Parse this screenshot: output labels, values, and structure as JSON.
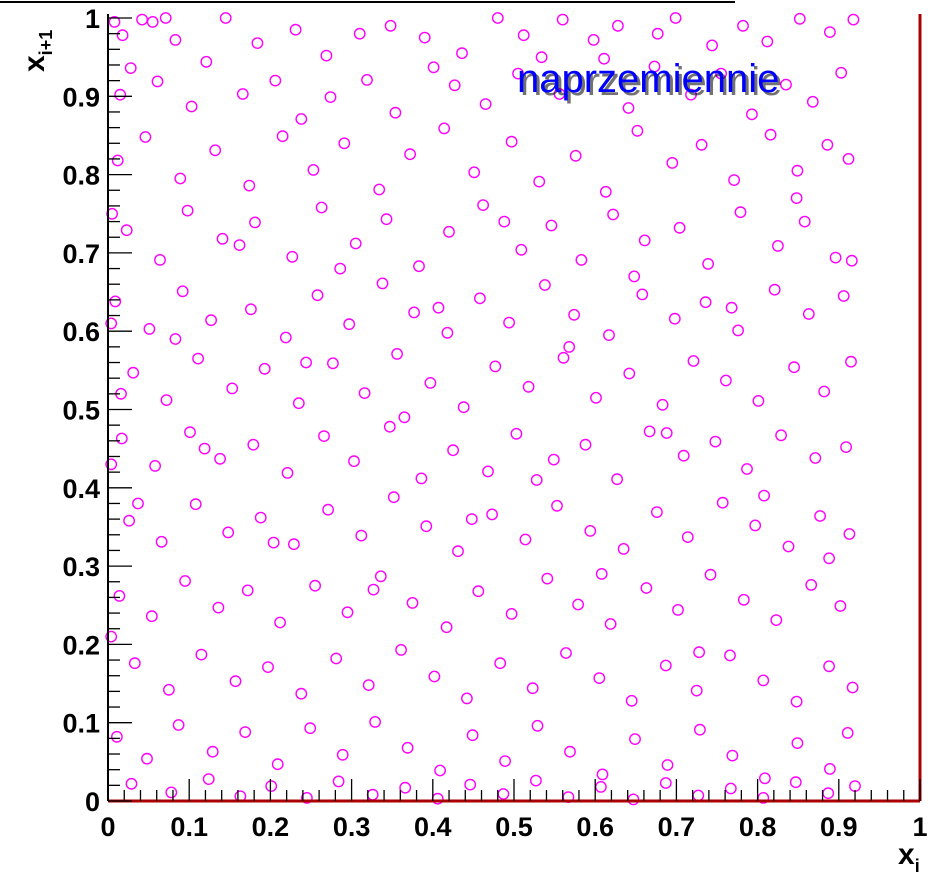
{
  "chart_data": {
    "type": "scatter",
    "title": "",
    "annotation": "naprzemiennie",
    "xlabel": {
      "base": "x",
      "sub": "i"
    },
    "ylabel": {
      "base": "x",
      "sub": "i+1"
    },
    "xlim": [
      0,
      1
    ],
    "ylim": [
      0,
      1
    ],
    "x_ticks": [
      "0",
      "0.1",
      "0.2",
      "0.3",
      "0.4",
      "0.5",
      "0.6",
      "0.7",
      "0.8",
      "0.9",
      "1"
    ],
    "y_ticks": [
      "0",
      "0.1",
      "0.2",
      "0.3",
      "0.4",
      "0.5",
      "0.6",
      "0.7",
      "0.8",
      "0.9",
      "1"
    ],
    "grid": false,
    "legend": "none",
    "marker": "open-circle",
    "marker_color": "#ff00ff",
    "axis_color": "#000000",
    "frame_color": "#aa0000",
    "annotation_color": "#0000ff",
    "points": [
      [
        0.008,
        0.995
      ],
      [
        0.018,
        0.978
      ],
      [
        0.042,
        0.998
      ],
      [
        0.055,
        0.995
      ],
      [
        0.071,
        1.0
      ],
      [
        0.083,
        0.972
      ],
      [
        0.145,
        1.0
      ],
      [
        0.184,
        0.968
      ],
      [
        0.231,
        0.985
      ],
      [
        0.269,
        0.952
      ],
      [
        0.31,
        0.98
      ],
      [
        0.348,
        0.99
      ],
      [
        0.39,
        0.975
      ],
      [
        0.436,
        0.955
      ],
      [
        0.48,
        1.0
      ],
      [
        0.512,
        0.978
      ],
      [
        0.534,
        0.95
      ],
      [
        0.56,
        0.998
      ],
      [
        0.598,
        0.972
      ],
      [
        0.628,
        0.99
      ],
      [
        0.677,
        0.98
      ],
      [
        0.699,
        1.0
      ],
      [
        0.744,
        0.965
      ],
      [
        0.782,
        0.99
      ],
      [
        0.812,
        0.97
      ],
      [
        0.852,
        0.999
      ],
      [
        0.889,
        0.982
      ],
      [
        0.918,
        0.998
      ],
      [
        0.015,
        0.902
      ],
      [
        0.028,
        0.936
      ],
      [
        0.061,
        0.919
      ],
      [
        0.103,
        0.887
      ],
      [
        0.121,
        0.944
      ],
      [
        0.166,
        0.903
      ],
      [
        0.206,
        0.92
      ],
      [
        0.238,
        0.871
      ],
      [
        0.274,
        0.899
      ],
      [
        0.319,
        0.921
      ],
      [
        0.354,
        0.879
      ],
      [
        0.401,
        0.937
      ],
      [
        0.427,
        0.914
      ],
      [
        0.465,
        0.89
      ],
      [
        0.505,
        0.929
      ],
      [
        0.556,
        0.903
      ],
      [
        0.611,
        0.948
      ],
      [
        0.641,
        0.885
      ],
      [
        0.673,
        0.938
      ],
      [
        0.718,
        0.902
      ],
      [
        0.755,
        0.929
      ],
      [
        0.793,
        0.877
      ],
      [
        0.835,
        0.915
      ],
      [
        0.868,
        0.893
      ],
      [
        0.903,
        0.93
      ],
      [
        0.012,
        0.818
      ],
      [
        0.046,
        0.848
      ],
      [
        0.089,
        0.795
      ],
      [
        0.132,
        0.831
      ],
      [
        0.174,
        0.786
      ],
      [
        0.215,
        0.849
      ],
      [
        0.253,
        0.806
      ],
      [
        0.291,
        0.84
      ],
      [
        0.334,
        0.781
      ],
      [
        0.372,
        0.826
      ],
      [
        0.414,
        0.859
      ],
      [
        0.451,
        0.803
      ],
      [
        0.497,
        0.842
      ],
      [
        0.531,
        0.791
      ],
      [
        0.576,
        0.824
      ],
      [
        0.613,
        0.778
      ],
      [
        0.652,
        0.856
      ],
      [
        0.695,
        0.815
      ],
      [
        0.731,
        0.838
      ],
      [
        0.771,
        0.793
      ],
      [
        0.816,
        0.851
      ],
      [
        0.849,
        0.805
      ],
      [
        0.886,
        0.838
      ],
      [
        0.912,
        0.82
      ],
      [
        0.023,
        0.729
      ],
      [
        0.064,
        0.691
      ],
      [
        0.098,
        0.754
      ],
      [
        0.141,
        0.718
      ],
      [
        0.181,
        0.739
      ],
      [
        0.227,
        0.695
      ],
      [
        0.263,
        0.758
      ],
      [
        0.305,
        0.712
      ],
      [
        0.343,
        0.743
      ],
      [
        0.383,
        0.683
      ],
      [
        0.42,
        0.727
      ],
      [
        0.462,
        0.761
      ],
      [
        0.509,
        0.704
      ],
      [
        0.546,
        0.735
      ],
      [
        0.583,
        0.691
      ],
      [
        0.622,
        0.749
      ],
      [
        0.661,
        0.716
      ],
      [
        0.704,
        0.732
      ],
      [
        0.739,
        0.686
      ],
      [
        0.779,
        0.752
      ],
      [
        0.825,
        0.709
      ],
      [
        0.858,
        0.74
      ],
      [
        0.896,
        0.694
      ],
      [
        0.009,
        0.638
      ],
      [
        0.051,
        0.603
      ],
      [
        0.092,
        0.651
      ],
      [
        0.127,
        0.614
      ],
      [
        0.176,
        0.628
      ],
      [
        0.219,
        0.592
      ],
      [
        0.258,
        0.646
      ],
      [
        0.297,
        0.609
      ],
      [
        0.338,
        0.661
      ],
      [
        0.377,
        0.624
      ],
      [
        0.418,
        0.598
      ],
      [
        0.458,
        0.642
      ],
      [
        0.494,
        0.611
      ],
      [
        0.538,
        0.659
      ],
      [
        0.574,
        0.621
      ],
      [
        0.617,
        0.595
      ],
      [
        0.658,
        0.647
      ],
      [
        0.698,
        0.616
      ],
      [
        0.736,
        0.637
      ],
      [
        0.776,
        0.601
      ],
      [
        0.821,
        0.653
      ],
      [
        0.863,
        0.622
      ],
      [
        0.906,
        0.645
      ],
      [
        0.031,
        0.547
      ],
      [
        0.072,
        0.512
      ],
      [
        0.111,
        0.565
      ],
      [
        0.153,
        0.527
      ],
      [
        0.193,
        0.552
      ],
      [
        0.235,
        0.508
      ],
      [
        0.277,
        0.559
      ],
      [
        0.316,
        0.521
      ],
      [
        0.356,
        0.571
      ],
      [
        0.397,
        0.534
      ],
      [
        0.438,
        0.503
      ],
      [
        0.477,
        0.555
      ],
      [
        0.518,
        0.529
      ],
      [
        0.561,
        0.566
      ],
      [
        0.601,
        0.515
      ],
      [
        0.642,
        0.546
      ],
      [
        0.683,
        0.506
      ],
      [
        0.721,
        0.562
      ],
      [
        0.761,
        0.537
      ],
      [
        0.801,
        0.511
      ],
      [
        0.845,
        0.554
      ],
      [
        0.882,
        0.523
      ],
      [
        0.915,
        0.561
      ],
      [
        0.017,
        0.463
      ],
      [
        0.058,
        0.428
      ],
      [
        0.101,
        0.471
      ],
      [
        0.138,
        0.437
      ],
      [
        0.179,
        0.455
      ],
      [
        0.221,
        0.419
      ],
      [
        0.266,
        0.466
      ],
      [
        0.303,
        0.434
      ],
      [
        0.347,
        0.478
      ],
      [
        0.386,
        0.412
      ],
      [
        0.425,
        0.448
      ],
      [
        0.468,
        0.421
      ],
      [
        0.503,
        0.469
      ],
      [
        0.549,
        0.436
      ],
      [
        0.588,
        0.455
      ],
      [
        0.627,
        0.411
      ],
      [
        0.667,
        0.472
      ],
      [
        0.709,
        0.441
      ],
      [
        0.748,
        0.459
      ],
      [
        0.787,
        0.424
      ],
      [
        0.829,
        0.467
      ],
      [
        0.871,
        0.438
      ],
      [
        0.909,
        0.452
      ],
      [
        0.026,
        0.358
      ],
      [
        0.066,
        0.331
      ],
      [
        0.108,
        0.379
      ],
      [
        0.148,
        0.343
      ],
      [
        0.188,
        0.362
      ],
      [
        0.229,
        0.328
      ],
      [
        0.271,
        0.372
      ],
      [
        0.312,
        0.339
      ],
      [
        0.352,
        0.388
      ],
      [
        0.392,
        0.351
      ],
      [
        0.431,
        0.319
      ],
      [
        0.473,
        0.366
      ],
      [
        0.514,
        0.334
      ],
      [
        0.553,
        0.377
      ],
      [
        0.594,
        0.345
      ],
      [
        0.635,
        0.322
      ],
      [
        0.676,
        0.369
      ],
      [
        0.714,
        0.337
      ],
      [
        0.757,
        0.381
      ],
      [
        0.797,
        0.352
      ],
      [
        0.838,
        0.325
      ],
      [
        0.877,
        0.364
      ],
      [
        0.913,
        0.341
      ],
      [
        0.014,
        0.262
      ],
      [
        0.054,
        0.236
      ],
      [
        0.095,
        0.281
      ],
      [
        0.136,
        0.247
      ],
      [
        0.172,
        0.269
      ],
      [
        0.212,
        0.228
      ],
      [
        0.255,
        0.275
      ],
      [
        0.295,
        0.241
      ],
      [
        0.336,
        0.287
      ],
      [
        0.375,
        0.253
      ],
      [
        0.417,
        0.222
      ],
      [
        0.456,
        0.268
      ],
      [
        0.497,
        0.239
      ],
      [
        0.541,
        0.284
      ],
      [
        0.579,
        0.251
      ],
      [
        0.619,
        0.226
      ],
      [
        0.663,
        0.272
      ],
      [
        0.702,
        0.244
      ],
      [
        0.742,
        0.289
      ],
      [
        0.783,
        0.257
      ],
      [
        0.823,
        0.231
      ],
      [
        0.866,
        0.276
      ],
      [
        0.902,
        0.249
      ],
      [
        0.033,
        0.176
      ],
      [
        0.075,
        0.142
      ],
      [
        0.115,
        0.187
      ],
      [
        0.157,
        0.153
      ],
      [
        0.197,
        0.171
      ],
      [
        0.238,
        0.137
      ],
      [
        0.281,
        0.182
      ],
      [
        0.321,
        0.148
      ],
      [
        0.361,
        0.193
      ],
      [
        0.402,
        0.159
      ],
      [
        0.442,
        0.131
      ],
      [
        0.483,
        0.176
      ],
      [
        0.523,
        0.144
      ],
      [
        0.564,
        0.189
      ],
      [
        0.605,
        0.157
      ],
      [
        0.645,
        0.128
      ],
      [
        0.687,
        0.173
      ],
      [
        0.725,
        0.141
      ],
      [
        0.766,
        0.186
      ],
      [
        0.807,
        0.154
      ],
      [
        0.848,
        0.127
      ],
      [
        0.888,
        0.172
      ],
      [
        0.917,
        0.145
      ],
      [
        0.011,
        0.082
      ],
      [
        0.048,
        0.054
      ],
      [
        0.087,
        0.097
      ],
      [
        0.129,
        0.063
      ],
      [
        0.169,
        0.088
      ],
      [
        0.209,
        0.047
      ],
      [
        0.249,
        0.093
      ],
      [
        0.289,
        0.059
      ],
      [
        0.329,
        0.101
      ],
      [
        0.369,
        0.068
      ],
      [
        0.409,
        0.039
      ],
      [
        0.449,
        0.084
      ],
      [
        0.489,
        0.051
      ],
      [
        0.529,
        0.096
      ],
      [
        0.569,
        0.063
      ],
      [
        0.609,
        0.034
      ],
      [
        0.649,
        0.079
      ],
      [
        0.689,
        0.046
      ],
      [
        0.729,
        0.091
      ],
      [
        0.769,
        0.058
      ],
      [
        0.809,
        0.029
      ],
      [
        0.849,
        0.074
      ],
      [
        0.889,
        0.041
      ],
      [
        0.911,
        0.087
      ],
      [
        0.029,
        0.022
      ],
      [
        0.078,
        0.011
      ],
      [
        0.124,
        0.028
      ],
      [
        0.163,
        0.006
      ],
      [
        0.201,
        0.019
      ],
      [
        0.245,
        0.004
      ],
      [
        0.284,
        0.025
      ],
      [
        0.326,
        0.008
      ],
      [
        0.366,
        0.017
      ],
      [
        0.406,
        0.003
      ],
      [
        0.446,
        0.021
      ],
      [
        0.487,
        0.009
      ],
      [
        0.527,
        0.026
      ],
      [
        0.567,
        0.005
      ],
      [
        0.607,
        0.018
      ],
      [
        0.647,
        0.002
      ],
      [
        0.687,
        0.023
      ],
      [
        0.727,
        0.007
      ],
      [
        0.767,
        0.016
      ],
      [
        0.807,
        0.004
      ],
      [
        0.847,
        0.024
      ],
      [
        0.887,
        0.01
      ],
      [
        0.92,
        0.019
      ],
      [
        0.004,
        0.61
      ],
      [
        0.004,
        0.43
      ],
      [
        0.004,
        0.21
      ],
      [
        0.005,
        0.75
      ],
      [
        0.016,
        0.52
      ],
      [
        0.037,
        0.38
      ],
      [
        0.083,
        0.59
      ],
      [
        0.119,
        0.45
      ],
      [
        0.162,
        0.71
      ],
      [
        0.204,
        0.33
      ],
      [
        0.244,
        0.56
      ],
      [
        0.286,
        0.68
      ],
      [
        0.327,
        0.27
      ],
      [
        0.365,
        0.49
      ],
      [
        0.407,
        0.63
      ],
      [
        0.448,
        0.36
      ],
      [
        0.488,
        0.74
      ],
      [
        0.528,
        0.41
      ],
      [
        0.568,
        0.58
      ],
      [
        0.608,
        0.29
      ],
      [
        0.648,
        0.67
      ],
      [
        0.688,
        0.47
      ],
      [
        0.728,
        0.19
      ],
      [
        0.768,
        0.63
      ],
      [
        0.808,
        0.39
      ],
      [
        0.848,
        0.77
      ],
      [
        0.888,
        0.31
      ],
      [
        0.916,
        0.69
      ]
    ]
  }
}
